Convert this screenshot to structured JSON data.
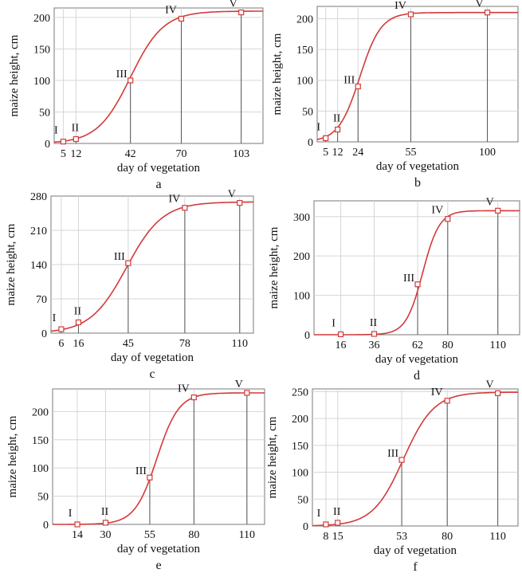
{
  "colors": {
    "curve": "#d23a3a",
    "grid": "#d6d6d6",
    "frame": "#7a7a7a",
    "drop_line": "#555555"
  },
  "chart_data": [
    {
      "type": "line",
      "panel": "a",
      "xlabel": "day of vegetation",
      "ylabel": "maize height, cm",
      "xlim": [
        0,
        115
      ],
      "ylim": [
        0,
        215
      ],
      "xticks": [
        5,
        12,
        42,
        70,
        103
      ],
      "yticks": [
        0,
        50,
        100,
        150,
        200
      ],
      "grid": true,
      "points": [
        {
          "stage": "I",
          "x": 5,
          "y": 3
        },
        {
          "stage": "II",
          "x": 12,
          "y": 7
        },
        {
          "stage": "III",
          "x": 42,
          "y": 100
        },
        {
          "stage": "IV",
          "x": 70,
          "y": 198
        },
        {
          "stage": "V",
          "x": 103,
          "y": 208
        }
      ],
      "curve": {
        "K": 210,
        "mid": 42,
        "rate": 0.11
      }
    },
    {
      "type": "line",
      "panel": "b",
      "xlabel": "day of vegetation",
      "ylabel": "maize height, cm",
      "xlim": [
        0,
        118
      ],
      "ylim": [
        0,
        220
      ],
      "xticks": [
        5,
        12,
        24,
        55,
        100
      ],
      "yticks": [
        0,
        50,
        100,
        150,
        200
      ],
      "grid": true,
      "points": [
        {
          "stage": "I",
          "x": 5,
          "y": 6
        },
        {
          "stage": "II",
          "x": 12,
          "y": 20
        },
        {
          "stage": "III",
          "x": 24,
          "y": 90
        },
        {
          "stage": "IV",
          "x": 55,
          "y": 207
        },
        {
          "stage": "V",
          "x": 100,
          "y": 210
        }
      ],
      "curve": {
        "K": 210,
        "mid": 25,
        "rate": 0.16
      }
    },
    {
      "type": "line",
      "panel": "c",
      "xlabel": "day of vegetation",
      "ylabel": "maize height, cm",
      "xlim": [
        0,
        118
      ],
      "ylim": [
        0,
        280
      ],
      "xticks": [
        6,
        16,
        45,
        78,
        110
      ],
      "yticks": [
        0,
        70,
        140,
        210,
        280
      ],
      "grid": true,
      "points": [
        {
          "stage": "I",
          "x": 6,
          "y": 8
        },
        {
          "stage": "II",
          "x": 16,
          "y": 22
        },
        {
          "stage": "III",
          "x": 45,
          "y": 143
        },
        {
          "stage": "IV",
          "x": 78,
          "y": 256
        },
        {
          "stage": "V",
          "x": 110,
          "y": 266
        }
      ],
      "curve": {
        "K": 268,
        "mid": 44,
        "rate": 0.095
      }
    },
    {
      "type": "line",
      "panel": "d",
      "xlabel": "day of vegetation",
      "ylabel": "maize height, cm",
      "xlim": [
        0,
        123
      ],
      "ylim": [
        0,
        340
      ],
      "xticks": [
        16,
        36,
        62,
        80,
        110
      ],
      "yticks": [
        0,
        100,
        200,
        300
      ],
      "grid": true,
      "points": [
        {
          "stage": "I",
          "x": 16,
          "y": 1
        },
        {
          "stage": "II",
          "x": 36,
          "y": 2
        },
        {
          "stage": "III",
          "x": 62,
          "y": 128
        },
        {
          "stage": "IV",
          "x": 80,
          "y": 294
        },
        {
          "stage": "V",
          "x": 110,
          "y": 315
        }
      ],
      "curve": {
        "K": 315,
        "mid": 65,
        "rate": 0.2
      }
    },
    {
      "type": "line",
      "panel": "e",
      "xlabel": "day of vegetation",
      "ylabel": "maize height, cm",
      "xlim": [
        0,
        120
      ],
      "ylim": [
        0,
        240
      ],
      "xticks": [
        14,
        30,
        55,
        80,
        110
      ],
      "yticks": [
        0,
        50,
        100,
        150,
        200
      ],
      "grid": true,
      "points": [
        {
          "stage": "I",
          "x": 14,
          "y": 0
        },
        {
          "stage": "II",
          "x": 30,
          "y": 3
        },
        {
          "stage": "III",
          "x": 55,
          "y": 83
        },
        {
          "stage": "IV",
          "x": 80,
          "y": 225
        },
        {
          "stage": "V",
          "x": 110,
          "y": 233
        }
      ],
      "curve": {
        "K": 233,
        "mid": 59,
        "rate": 0.16
      }
    },
    {
      "type": "line",
      "panel": "f",
      "xlabel": "day of vegetation",
      "ylabel": "maize height, cm",
      "xlim": [
        0,
        122
      ],
      "ylim": [
        0,
        255
      ],
      "xticks": [
        8,
        15,
        53,
        80,
        110
      ],
      "yticks": [
        0,
        50,
        100,
        150,
        200,
        250
      ],
      "grid": true,
      "points": [
        {
          "stage": "I",
          "x": 8,
          "y": 3
        },
        {
          "stage": "II",
          "x": 15,
          "y": 6
        },
        {
          "stage": "III",
          "x": 53,
          "y": 123
        },
        {
          "stage": "IV",
          "x": 80,
          "y": 233
        },
        {
          "stage": "V",
          "x": 110,
          "y": 247
        }
      ],
      "curve": {
        "K": 249,
        "mid": 54,
        "rate": 0.11
      }
    }
  ]
}
